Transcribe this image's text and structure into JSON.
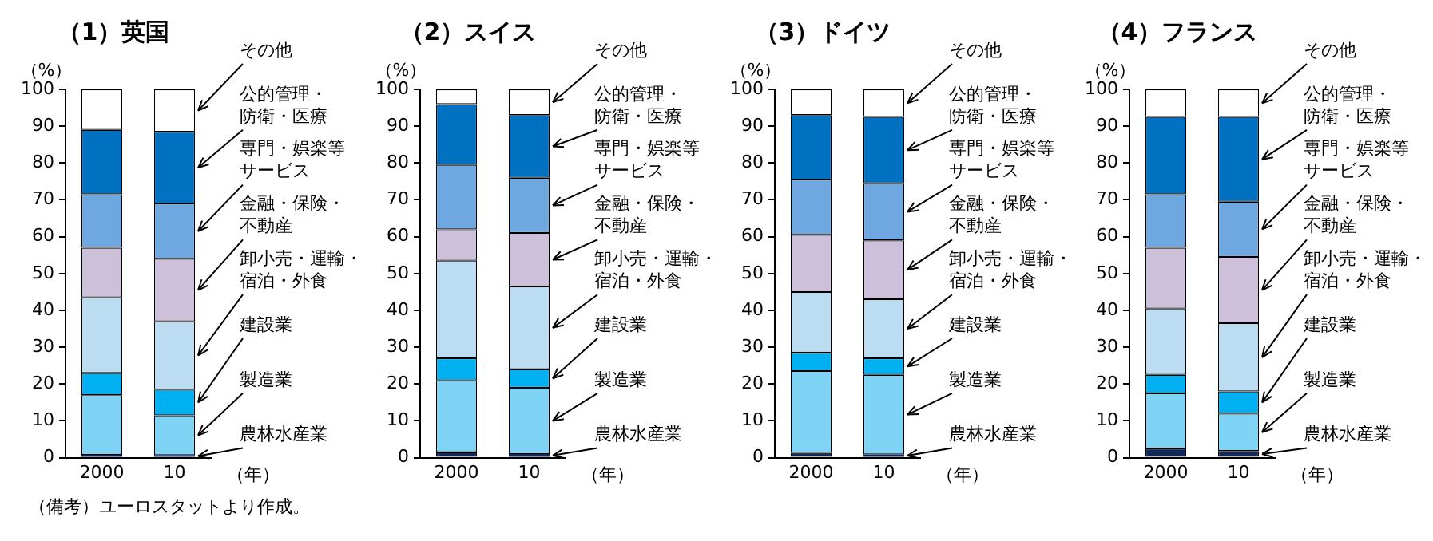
{
  "chart_data": [
    {
      "type": "bar",
      "legend": "right",
      "title": "（1）英国",
      "ylabel": "（%）",
      "xlabel": "（年）",
      "categories": [
        "2000",
        "10"
      ],
      "stacked": true,
      "ylim": [
        0,
        100
      ],
      "yticks": [
        0,
        10,
        20,
        30,
        40,
        50,
        60,
        70,
        80,
        90,
        100
      ],
      "annotations": [
        "（備考）ユーロスタットより作成。"
      ],
      "series": [
        {
          "name": "農林水産業",
          "color": "#10295a",
          "values": [
            0.8,
            0.7
          ]
        },
        {
          "name": "製造業",
          "color": "#7fd3f5",
          "values": [
            16.2,
            10.8
          ]
        },
        {
          "name": "建設業",
          "color": "#00b0f0",
          "values": [
            6,
            7
          ]
        },
        {
          "name": "卸小売・運輸・宿泊・外食",
          "color": "#bcdcf2",
          "values": [
            20.5,
            18.5
          ]
        },
        {
          "name": "金融・保険・不動産",
          "color": "#ccc0da",
          "values": [
            13.5,
            17
          ]
        },
        {
          "name": "専門・娯楽等サービス",
          "color": "#6fa8e0",
          "values": [
            14.5,
            15
          ]
        },
        {
          "name": "公的管理・防衛・医療",
          "color": "#0070c0",
          "values": [
            17.5,
            19.5
          ]
        },
        {
          "name": "その他",
          "color": "#ffffff",
          "values": [
            11,
            11.5
          ]
        }
      ]
    },
    {
      "type": "bar",
      "legend": "right",
      "title": "（2）スイス",
      "ylabel": "（%）",
      "xlabel": "（年）",
      "categories": [
        "2000",
        "10"
      ],
      "stacked": true,
      "ylim": [
        0,
        100
      ],
      "yticks": [
        0,
        10,
        20,
        30,
        40,
        50,
        60,
        70,
        80,
        90,
        100
      ],
      "series": [
        {
          "name": "農林水産業",
          "color": "#10295a",
          "values": [
            1.5,
            1
          ]
        },
        {
          "name": "製造業",
          "color": "#7fd3f5",
          "values": [
            19.5,
            18
          ]
        },
        {
          "name": "建設業",
          "color": "#00b0f0",
          "values": [
            6,
            5
          ]
        },
        {
          "name": "卸小売・運輸・宿泊・外食",
          "color": "#bcdcf2",
          "values": [
            26.5,
            22.5
          ]
        },
        {
          "name": "金融・保険・不動産",
          "color": "#ccc0da",
          "values": [
            8.5,
            14.5
          ]
        },
        {
          "name": "専門・娯楽等サービス",
          "color": "#6fa8e0",
          "values": [
            17.5,
            15
          ]
        },
        {
          "name": "公的管理・防衛・医療",
          "color": "#0070c0",
          "values": [
            16.5,
            17
          ]
        },
        {
          "name": "その他",
          "color": "#ffffff",
          "values": [
            4,
            7
          ]
        }
      ]
    },
    {
      "type": "bar",
      "legend": "right",
      "title": "（3）ドイツ",
      "ylabel": "（%）",
      "xlabel": "（年）",
      "categories": [
        "2000",
        "10"
      ],
      "stacked": true,
      "ylim": [
        0,
        100
      ],
      "yticks": [
        0,
        10,
        20,
        30,
        40,
        50,
        60,
        70,
        80,
        90,
        100
      ],
      "series": [
        {
          "name": "農林水産業",
          "color": "#10295a",
          "values": [
            1.3,
            0.9
          ]
        },
        {
          "name": "製造業",
          "color": "#7fd3f5",
          "values": [
            22.2,
            21.6
          ]
        },
        {
          "name": "建設業",
          "color": "#00b0f0",
          "values": [
            5,
            4.5
          ]
        },
        {
          "name": "卸小売・運輸・宿泊・外食",
          "color": "#bcdcf2",
          "values": [
            16.5,
            16
          ]
        },
        {
          "name": "金融・保険・不動産",
          "color": "#ccc0da",
          "values": [
            15.5,
            16
          ]
        },
        {
          "name": "専門・娯楽等サービス",
          "color": "#6fa8e0",
          "values": [
            15,
            15.5
          ]
        },
        {
          "name": "公的管理・防衛・医療",
          "color": "#0070c0",
          "values": [
            17.5,
            18
          ]
        },
        {
          "name": "その他",
          "color": "#ffffff",
          "values": [
            7,
            7.5
          ]
        }
      ]
    },
    {
      "type": "bar",
      "legend": "right",
      "title": "（4）フランス",
      "ylabel": "（%）",
      "xlabel": "（年）",
      "categories": [
        "2000",
        "10"
      ],
      "stacked": true,
      "ylim": [
        0,
        100
      ],
      "yticks": [
        0,
        10,
        20,
        30,
        40,
        50,
        60,
        70,
        80,
        90,
        100
      ],
      "series": [
        {
          "name": "農林水産業",
          "color": "#10295a",
          "values": [
            2.5,
            1.8
          ]
        },
        {
          "name": "製造業",
          "color": "#7fd3f5",
          "values": [
            15,
            10.2
          ]
        },
        {
          "name": "建設業",
          "color": "#00b0f0",
          "values": [
            5,
            6
          ]
        },
        {
          "name": "卸小売・運輸・宿泊・外食",
          "color": "#bcdcf2",
          "values": [
            18,
            18.5
          ]
        },
        {
          "name": "金融・保険・不動産",
          "color": "#ccc0da",
          "values": [
            16.5,
            18
          ]
        },
        {
          "name": "専門・娯楽等サービス",
          "color": "#6fa8e0",
          "values": [
            14.5,
            15
          ]
        },
        {
          "name": "公的管理・防衛・医療",
          "color": "#0070c0",
          "values": [
            21,
            23
          ]
        },
        {
          "name": "その他",
          "color": "#ffffff",
          "values": [
            7.5,
            7.5
          ]
        }
      ]
    }
  ]
}
